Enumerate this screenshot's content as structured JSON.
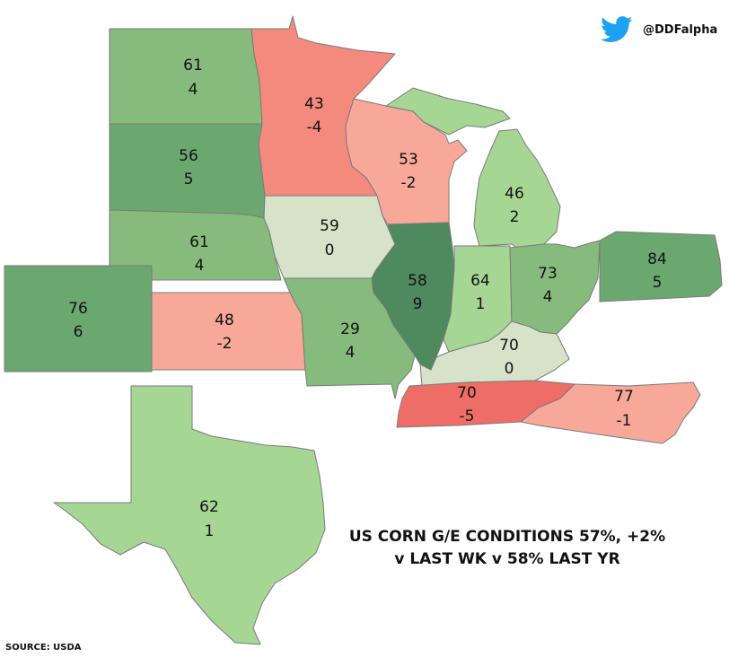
{
  "header": {
    "handle": "@DDFalpha",
    "logo_icon": "twitter-bird-icon",
    "logo_color": "#1DA1F2"
  },
  "headline": {
    "line1": "US CORN G/E CONDITIONS 57%, +2%",
    "line2": "v LAST WK v 58% LAST YR"
  },
  "source": "SOURCE: USDA",
  "colors": {
    "dark_green": "#4e8a5e",
    "mid_green": "#6ba870",
    "green": "#86bb7d",
    "light_green": "#a6d694",
    "neutral": "#d6e3c9",
    "light_red": "#f8a898",
    "mid_red": "#f48a7e",
    "red": "#ee6e67"
  },
  "states": [
    {
      "id": "ND",
      "value": "61",
      "change": "4",
      "color": "#86bb7d"
    },
    {
      "id": "SD",
      "value": "56",
      "change": "5",
      "color": "#6ba870"
    },
    {
      "id": "NE",
      "value": "61",
      "change": "4",
      "color": "#86bb7d"
    },
    {
      "id": "CO",
      "value": "76",
      "change": "6",
      "color": "#6ba870"
    },
    {
      "id": "KS",
      "value": "48",
      "change": "-2",
      "color": "#f8a898"
    },
    {
      "id": "MN",
      "value": "43",
      "change": "-4",
      "color": "#f48a7e"
    },
    {
      "id": "IA",
      "value": "59",
      "change": "0",
      "color": "#d6e3c9"
    },
    {
      "id": "MO",
      "value": "29",
      "change": "4",
      "color": "#86bb7d"
    },
    {
      "id": "WI",
      "value": "53",
      "change": "-2",
      "color": "#f8a898"
    },
    {
      "id": "IL",
      "value": "58",
      "change": "9",
      "color": "#4e8a5e"
    },
    {
      "id": "MI",
      "value": "46",
      "change": "2",
      "color": "#a6d694"
    },
    {
      "id": "IN",
      "value": "64",
      "change": "1",
      "color": "#a6d694"
    },
    {
      "id": "OH",
      "value": "73",
      "change": "4",
      "color": "#86bb7d"
    },
    {
      "id": "PA",
      "value": "84",
      "change": "5",
      "color": "#6ba870"
    },
    {
      "id": "KY",
      "value": "70",
      "change": "0",
      "color": "#d6e3c9"
    },
    {
      "id": "TN",
      "value": "70",
      "change": "-5",
      "color": "#ee6e67"
    },
    {
      "id": "NC",
      "value": "77",
      "change": "-1",
      "color": "#f8a898"
    },
    {
      "id": "TX",
      "value": "62",
      "change": "1",
      "color": "#a6d694"
    }
  ]
}
